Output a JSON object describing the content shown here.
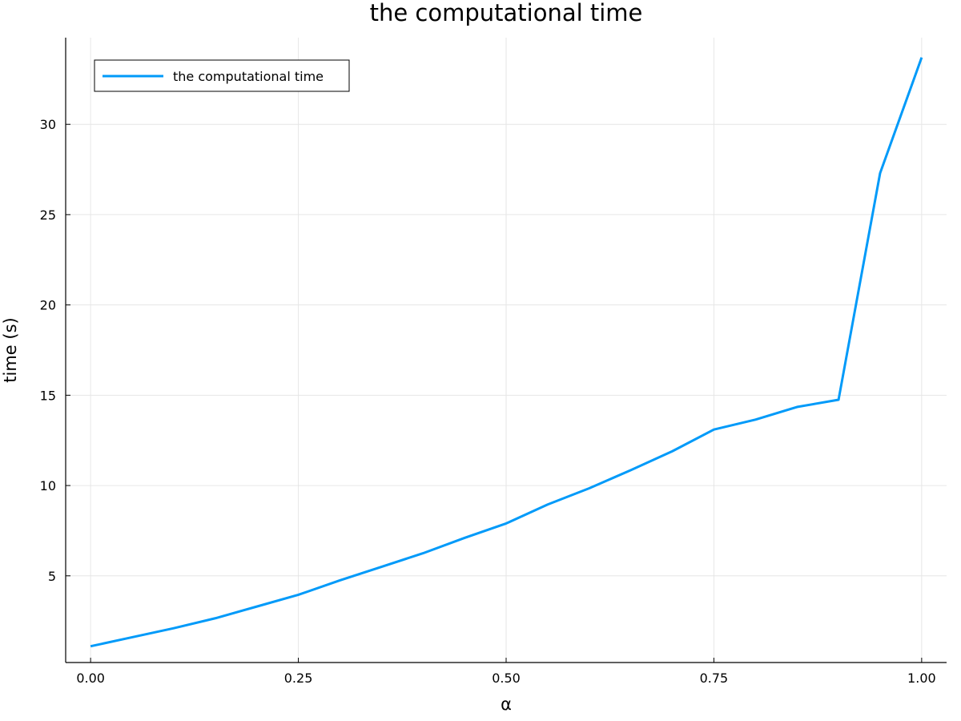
{
  "chart_data": {
    "type": "line",
    "title": "the computational time",
    "xlabel": "α",
    "ylabel": "time (s)",
    "xlim": [
      -0.03,
      1.03
    ],
    "ylim": [
      0.2,
      34.8
    ],
    "x_ticks": [
      0.0,
      0.25,
      0.5,
      0.75,
      1.0
    ],
    "x_tick_labels": [
      "0.00",
      "0.25",
      "0.50",
      "0.75",
      "1.00"
    ],
    "y_ticks": [
      5,
      10,
      15,
      20,
      25,
      30
    ],
    "y_tick_labels": [
      "5",
      "10",
      "15",
      "20",
      "25",
      "30"
    ],
    "grid": true,
    "legend_position": "top-left",
    "series": [
      {
        "name": "the computational time",
        "color": "#009af9",
        "x": [
          0.0,
          0.05,
          0.1,
          0.15,
          0.2,
          0.25,
          0.3,
          0.35,
          0.4,
          0.45,
          0.5,
          0.55,
          0.6,
          0.65,
          0.7,
          0.75,
          0.8,
          0.85,
          0.9,
          0.95,
          1.0
        ],
        "y": [
          1.1,
          1.6,
          2.1,
          2.65,
          3.3,
          3.95,
          4.75,
          5.5,
          6.25,
          7.1,
          7.9,
          8.95,
          9.85,
          10.85,
          11.9,
          13.1,
          13.65,
          14.35,
          14.75,
          27.3,
          33.7
        ]
      }
    ]
  }
}
